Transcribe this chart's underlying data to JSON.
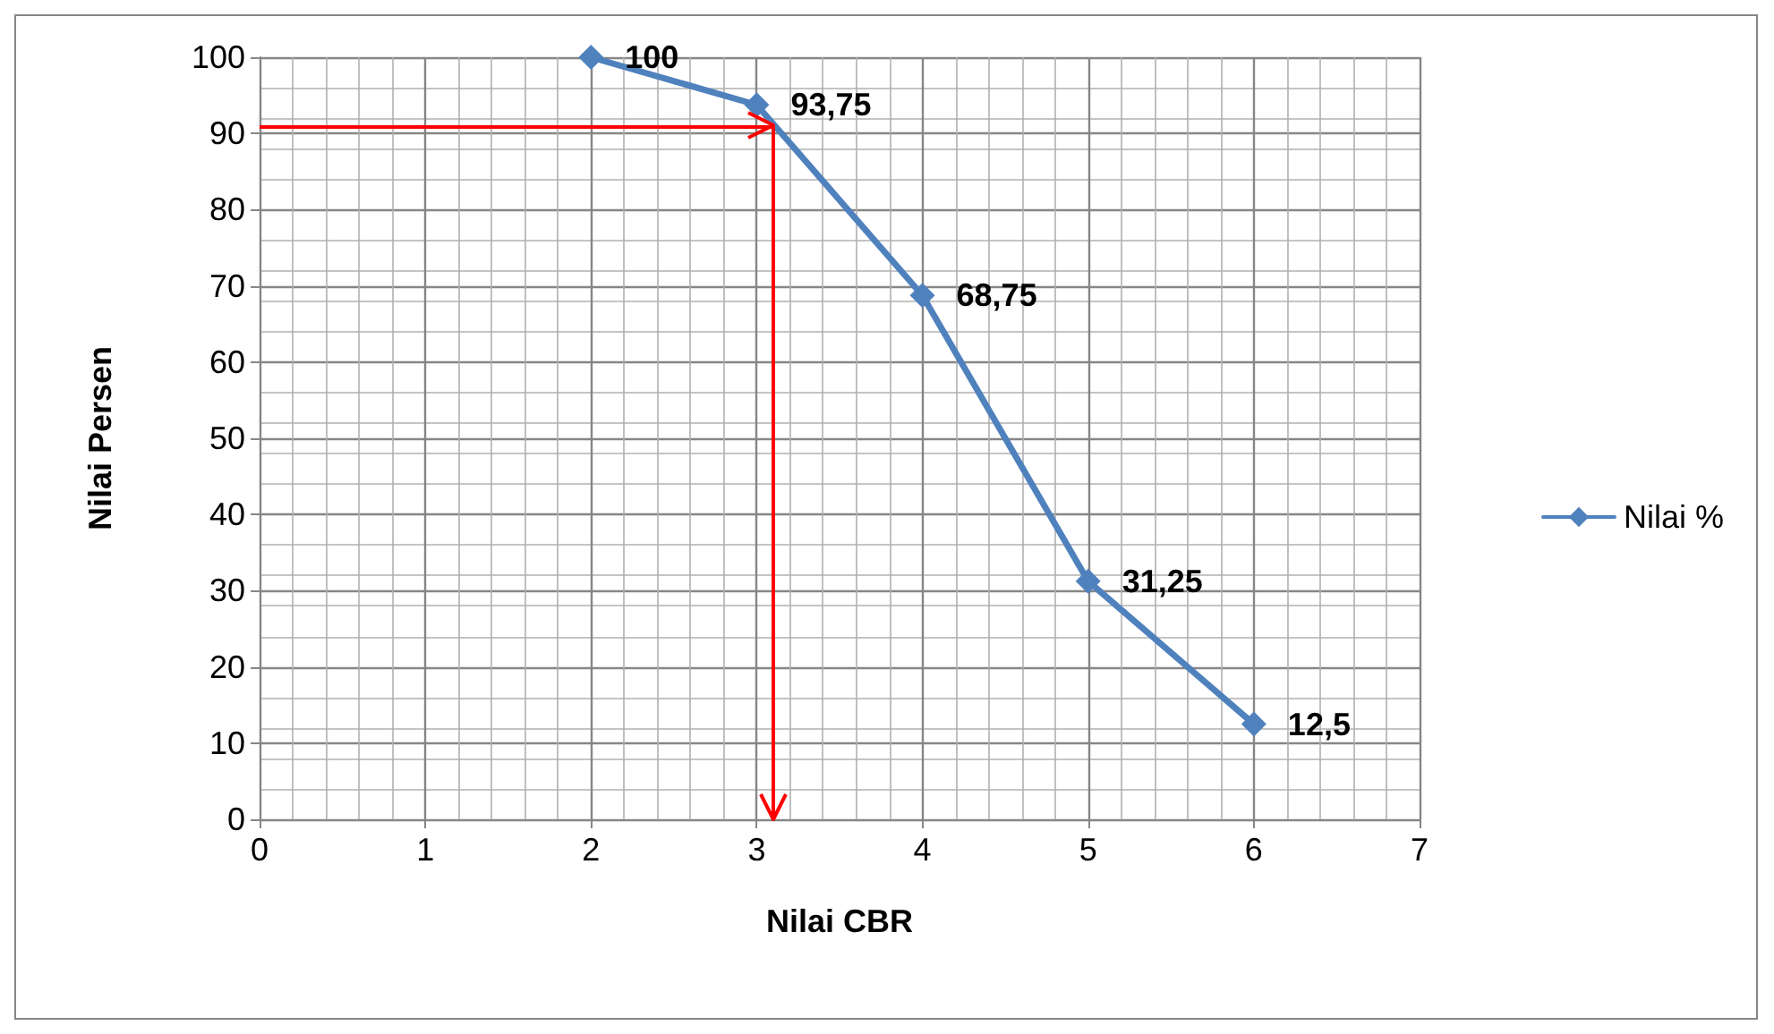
{
  "chart_data": {
    "type": "line",
    "xlabel": "Nilai CBR",
    "ylabel": "Nilai Persen",
    "x": [
      2,
      3,
      4,
      5,
      6
    ],
    "series": [
      {
        "name": "Nilai %",
        "color": "#4f81bd",
        "values": [
          100,
          93.75,
          68.75,
          31.25,
          12.5
        ],
        "value_labels": [
          "100",
          "93,75",
          "68,75",
          "31,25",
          "12,5"
        ]
      }
    ],
    "xlim": [
      0,
      7
    ],
    "xticks": [
      0,
      1,
      2,
      3,
      4,
      5,
      6,
      7
    ],
    "ylim": [
      0,
      100
    ],
    "yticks": [
      0,
      10,
      20,
      30,
      40,
      50,
      60,
      70,
      80,
      90,
      100
    ],
    "ref_lines": [
      {
        "axis": "y",
        "value": 91,
        "color": "#ff0000"
      },
      {
        "axis": "x",
        "value": 3.1,
        "color": "#ff0000"
      }
    ],
    "grid": true,
    "legend": "right",
    "marker": "diamond",
    "line_style": "solid"
  }
}
